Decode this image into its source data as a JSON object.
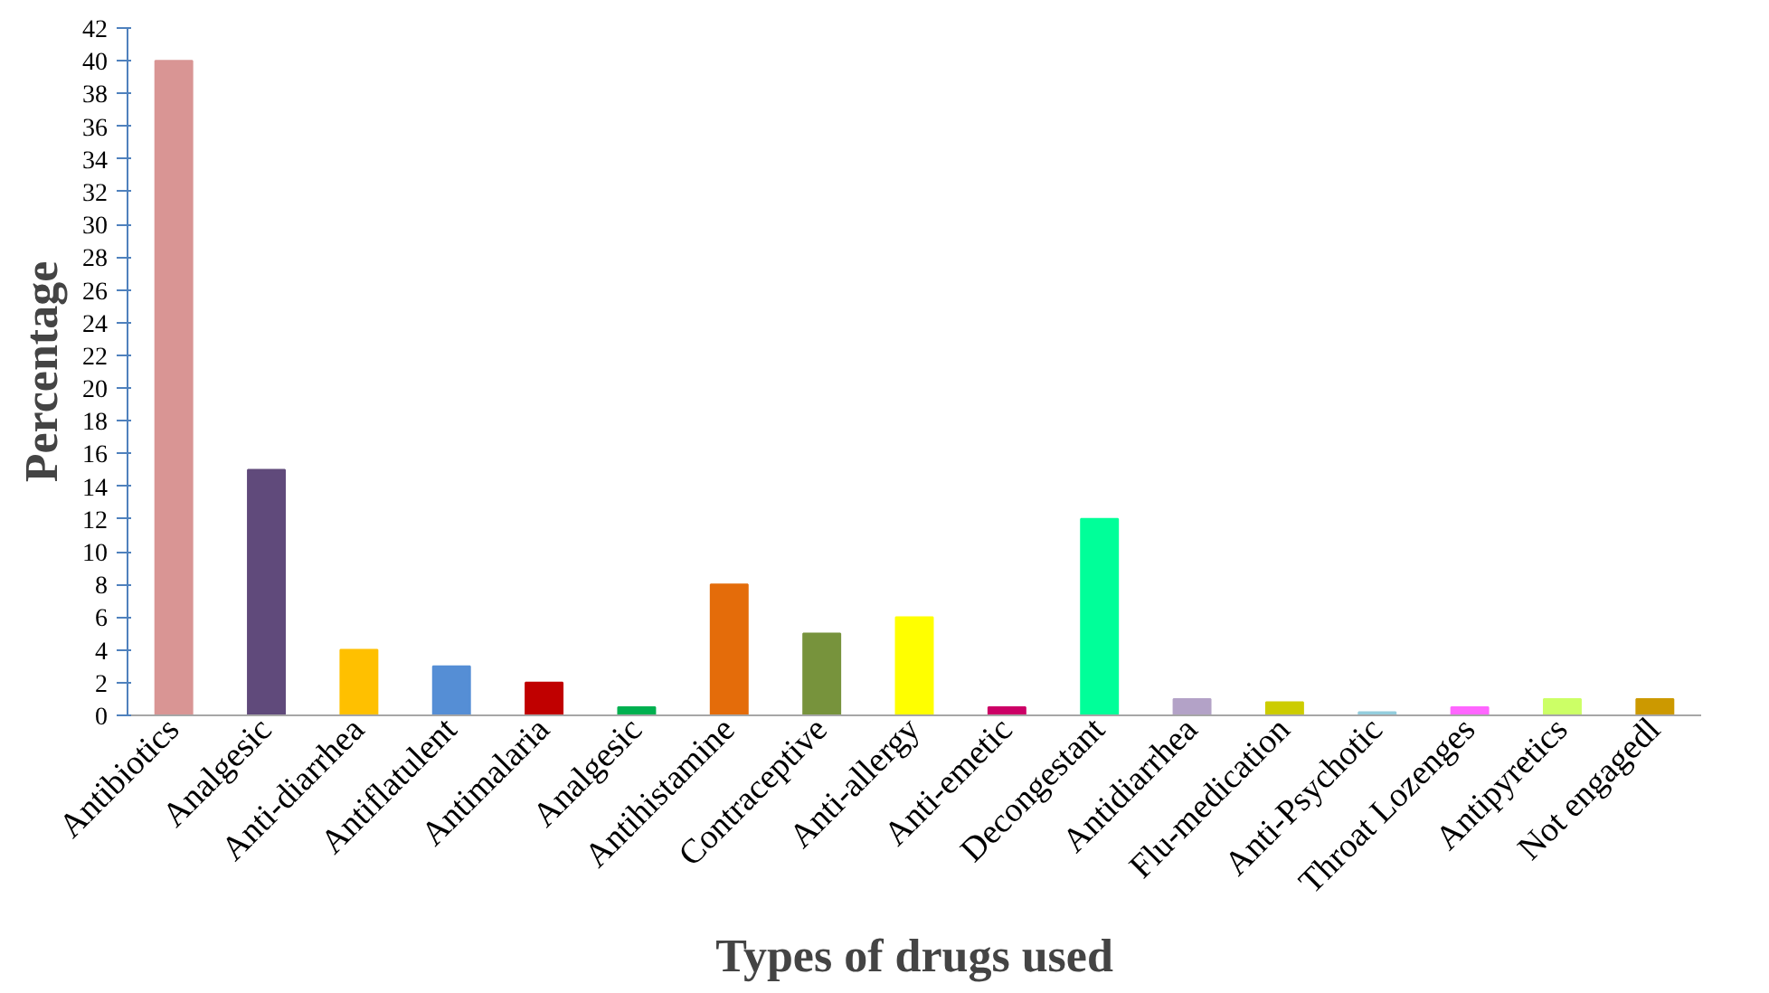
{
  "chart_data": {
    "type": "bar",
    "xlabel": "Types of drugs used",
    "ylabel": "Percentage",
    "categories": [
      "Antibiotics",
      "Analgesic",
      "Anti-diarrhea",
      "Antiflatulent",
      "Antimalaria",
      "Analgesic",
      "Antihistamine",
      "Contraceptive",
      "Anti-allergy",
      "Anti-emetic",
      "Decongestant",
      "Antidiarrhea",
      "Flu-medication",
      "Anti-Psychotic",
      "Throat Lozenges",
      "Antipyretics",
      "Not engagedl"
    ],
    "values": [
      40,
      15,
      4,
      3,
      2,
      0.5,
      8,
      5,
      6,
      0.5,
      12,
      1,
      0.8,
      0.2,
      0.5,
      1,
      1
    ],
    "colors": [
      "#d99594",
      "#604a7b",
      "#ffc000",
      "#558ed5",
      "#c00000",
      "#00b050",
      "#e46c0a",
      "#77933c",
      "#ffff00",
      "#cc0066",
      "#00ff99",
      "#b3a2c7",
      "#cccc00",
      "#93cddd",
      "#ff66ff",
      "#ccff66",
      "#cc9900"
    ],
    "ylim": [
      0,
      42
    ],
    "yticks": [
      0,
      2,
      4,
      6,
      8,
      10,
      12,
      14,
      16,
      18,
      20,
      22,
      24,
      26,
      28,
      30,
      32,
      34,
      36,
      38,
      40,
      42
    ],
    "grid": false
  }
}
